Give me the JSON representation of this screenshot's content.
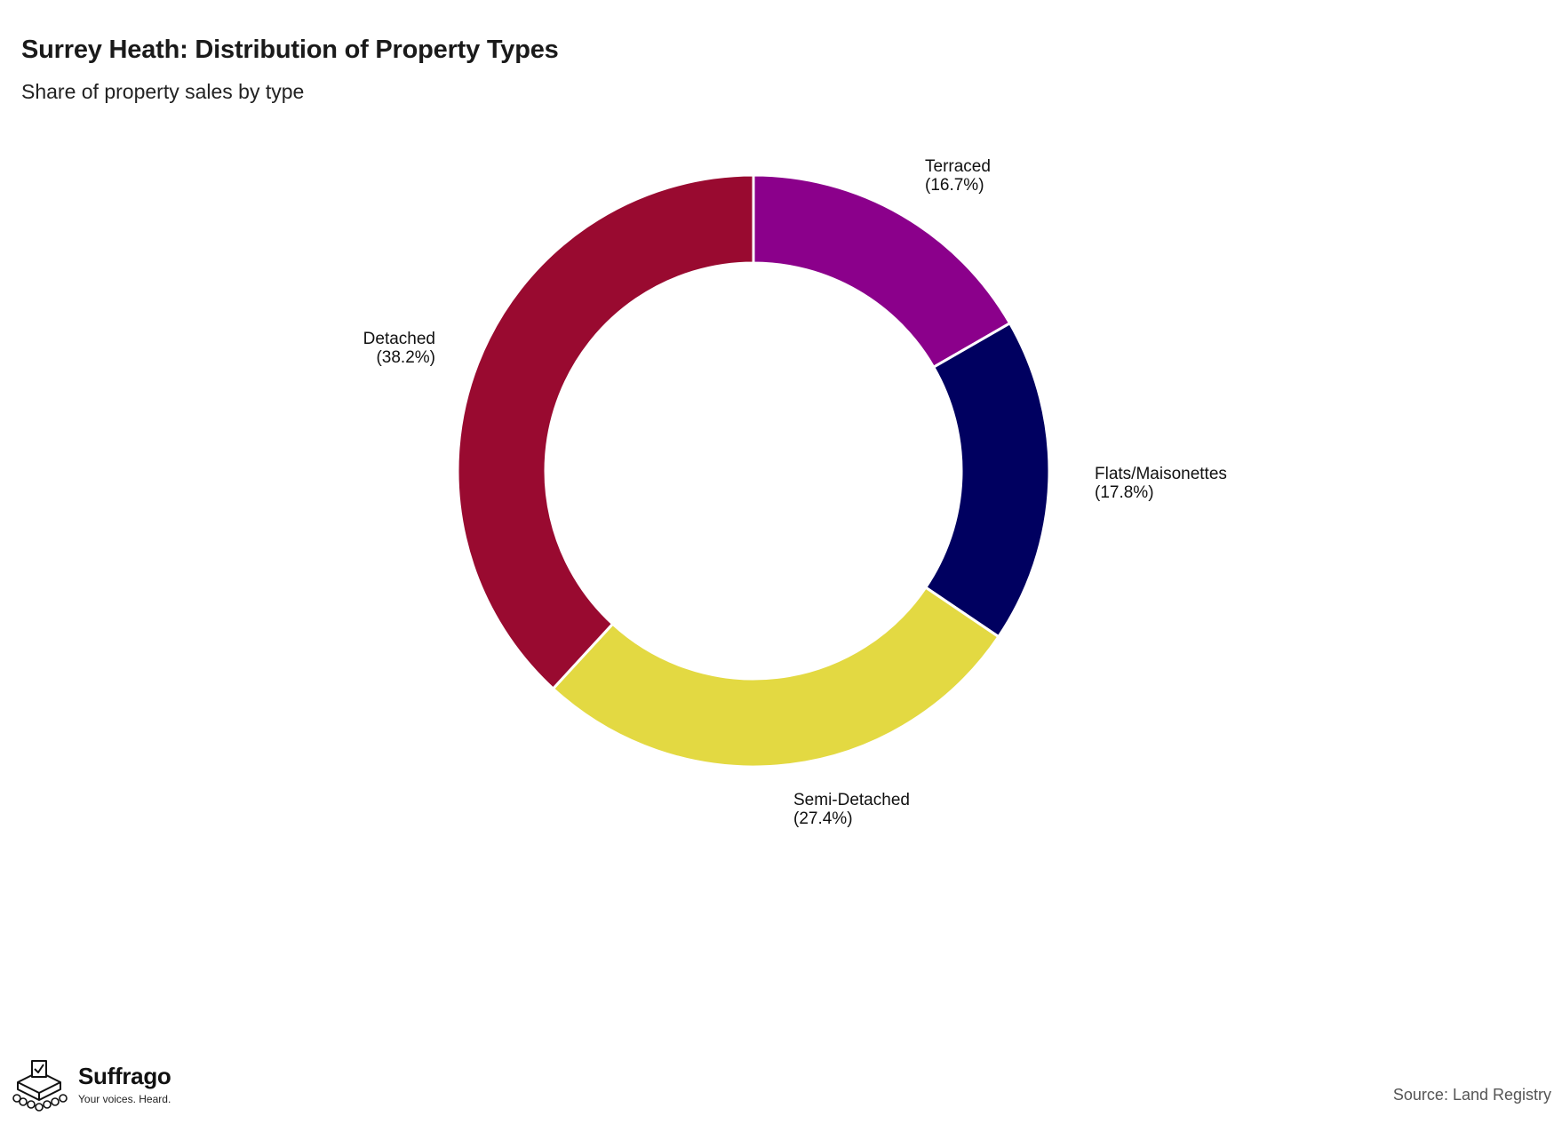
{
  "title": "Surrey Heath: Distribution of Property Types",
  "subtitle": "Share of property sales by type",
  "source": "Source: Land Registry",
  "brand": {
    "name": "Suffrago",
    "tagline": "Your voices. Heard."
  },
  "chart_data": {
    "type": "pie",
    "donut": true,
    "title": "Surrey Heath: Distribution of Property Types",
    "subtitle": "Share of property sales by type",
    "slices": [
      {
        "name": "Terraced",
        "value": 16.7,
        "label": "(16.7%)",
        "color": "#8b008b"
      },
      {
        "name": "Flats/Maisonettes",
        "value": 17.8,
        "label": "(17.8%)",
        "color": "#000060"
      },
      {
        "name": "Semi-Detached",
        "value": 27.4,
        "label": "(27.4%)",
        "color": "#e3d942"
      },
      {
        "name": "Detached",
        "value": 38.2,
        "label": "(38.2%)",
        "color": "#990a30"
      }
    ],
    "legend": "none",
    "labels_outside": true
  }
}
